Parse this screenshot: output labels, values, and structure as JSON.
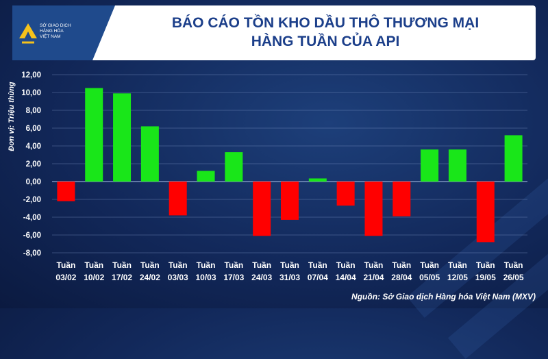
{
  "header": {
    "title_line1": "BÁO CÁO TỒN KHO DẦU THÔ THƯƠNG MẠI",
    "title_line2": "HÀNG TUẦN CỦA API"
  },
  "logo": {
    "line1": "Sở Giao dịch",
    "line2": "Hàng hóa",
    "line3": "Việt Nam"
  },
  "source": "Nguồn: Sở Giao dịch Hàng hóa Việt Nam (MXV)",
  "colors": {
    "positive": "#19e619",
    "negative": "#ff0000",
    "title": "#1c3f8a",
    "logo_bg": "#1f4a8c",
    "logo_accent": "#f5c21b"
  },
  "chart_data": {
    "type": "bar",
    "ylabel": "Đơn vị: Triệu thùng",
    "ylim": [
      -8,
      12
    ],
    "yticks": [
      "12,00",
      "10,00",
      "8,00",
      "6,00",
      "4,00",
      "2,00",
      "0,00",
      "-2,00",
      "-4,00",
      "-6,00",
      "-8,00"
    ],
    "grid": true,
    "categories": [
      {
        "week": "Tuần",
        "date": "03/02"
      },
      {
        "week": "Tuần",
        "date": "10/02"
      },
      {
        "week": "Tuần",
        "date": "17/02"
      },
      {
        "week": "Tuần",
        "date": "24/02"
      },
      {
        "week": "Tuần",
        "date": "03/03"
      },
      {
        "week": "Tuần",
        "date": "10/03"
      },
      {
        "week": "Tuần",
        "date": "17/03"
      },
      {
        "week": "Tuần",
        "date": "24/03"
      },
      {
        "week": "Tuần",
        "date": "31/03"
      },
      {
        "week": "Tuần",
        "date": "07/04"
      },
      {
        "week": "Tuần",
        "date": "14/04"
      },
      {
        "week": "Tuần",
        "date": "21/04"
      },
      {
        "week": "Tuần",
        "date": "28/04"
      },
      {
        "week": "Tuần",
        "date": "05/05"
      },
      {
        "week": "Tuần",
        "date": "12/05"
      },
      {
        "week": "Tuần",
        "date": "19/05"
      },
      {
        "week": "Tuần",
        "date": "26/05"
      }
    ],
    "values": [
      -2.2,
      10.5,
      9.9,
      6.2,
      -3.8,
      1.2,
      3.3,
      -6.1,
      -4.3,
      0.35,
      -2.7,
      -6.1,
      -3.9,
      3.6,
      3.6,
      -6.8,
      5.2
    ]
  }
}
